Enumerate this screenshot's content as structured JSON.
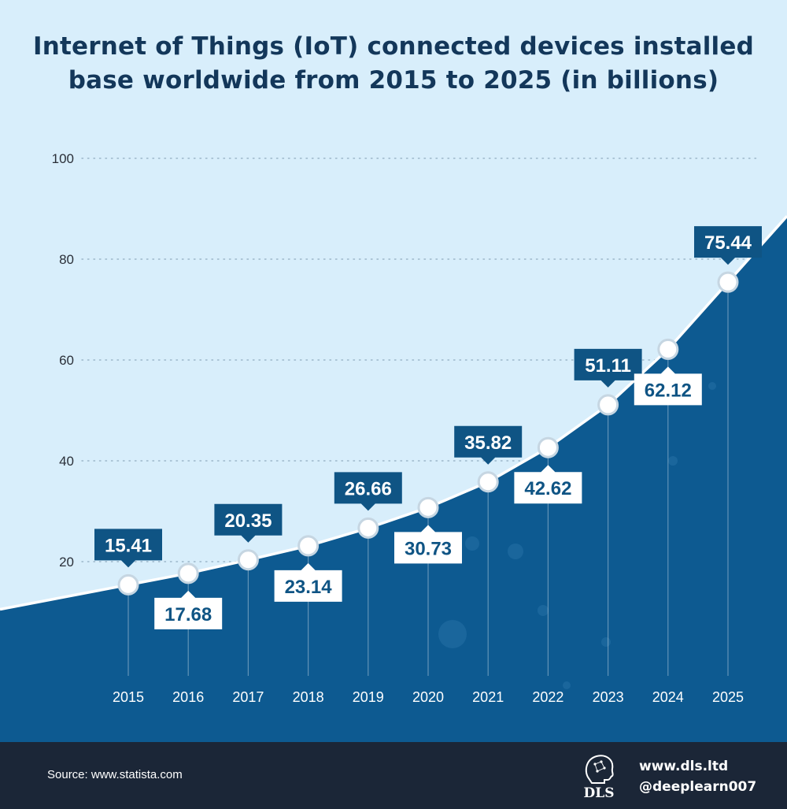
{
  "chart_data": {
    "type": "area",
    "title": "Internet of Things (IoT) connected devices installed base worldwide from 2015 to 2025 (in billions)",
    "categories": [
      "2015",
      "2016",
      "2017",
      "2018",
      "2019",
      "2020",
      "2021",
      "2022",
      "2023",
      "2024",
      "2025"
    ],
    "values": [
      15.41,
      17.68,
      20.35,
      23.14,
      26.66,
      30.73,
      35.82,
      42.62,
      51.11,
      62.12,
      75.44
    ],
    "data_labels": [
      "15.41",
      "17.68",
      "20.35",
      "23.14",
      "26.66",
      "30.73",
      "35.82",
      "42.62",
      "51.11",
      "62.12",
      "75.44"
    ],
    "label_positions": [
      "above",
      "below",
      "above",
      "below",
      "above",
      "below",
      "above",
      "below",
      "above",
      "below",
      "above"
    ],
    "y_ticks": [
      "0",
      "20",
      "40",
      "60",
      "80",
      "100"
    ],
    "ylim": [
      0,
      100
    ],
    "xlabel": "",
    "ylabel": "",
    "grid": true,
    "colors": {
      "background": "#d8eefb",
      "area": "#0d5a91",
      "line": "#ffffff",
      "label_dark": "#0f5484",
      "label_light": "#ffffff",
      "title": "#13375a",
      "footer": "#1b2637"
    }
  },
  "footer": {
    "source": "Source: www.statista.com",
    "logo_text": "DLS",
    "website": "www.dls.ltd",
    "handle": "@deeplearn007"
  }
}
